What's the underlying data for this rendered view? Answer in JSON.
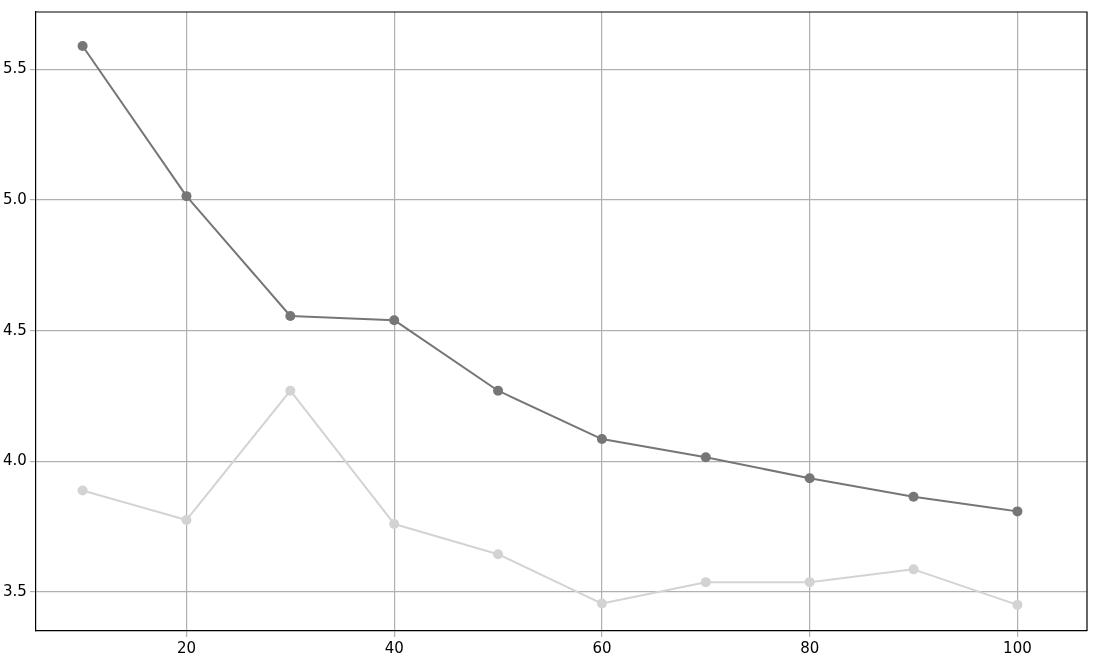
{
  "chart_data": {
    "type": "line",
    "x": [
      10,
      20,
      30,
      40,
      50,
      60,
      70,
      80,
      90,
      100
    ],
    "series": [
      {
        "color": "#767676",
        "values": [
          5.59,
          5.015,
          4.556,
          4.54,
          4.27,
          4.085,
          4.015,
          3.935,
          3.864,
          3.808
        ]
      },
      {
        "color": "#d3d3d3",
        "values": [
          3.888,
          3.775,
          4.27,
          3.76,
          3.644,
          3.455,
          3.537,
          3.537,
          3.586,
          3.45
        ]
      }
    ],
    "xlim": [
      5.5,
      106.7
    ],
    "xticks": [
      20,
      40,
      60,
      80,
      100
    ],
    "ylim": [
      3.35,
      5.72
    ],
    "yticks": [
      3.5,
      {
        "value": 4,
        "label": "4.0"
      },
      4.5,
      {
        "value": 5,
        "label": "5.0"
      },
      5.5
    ],
    "grid": true,
    "marker": "circle",
    "line_style": "solid",
    "legend": false
  }
}
